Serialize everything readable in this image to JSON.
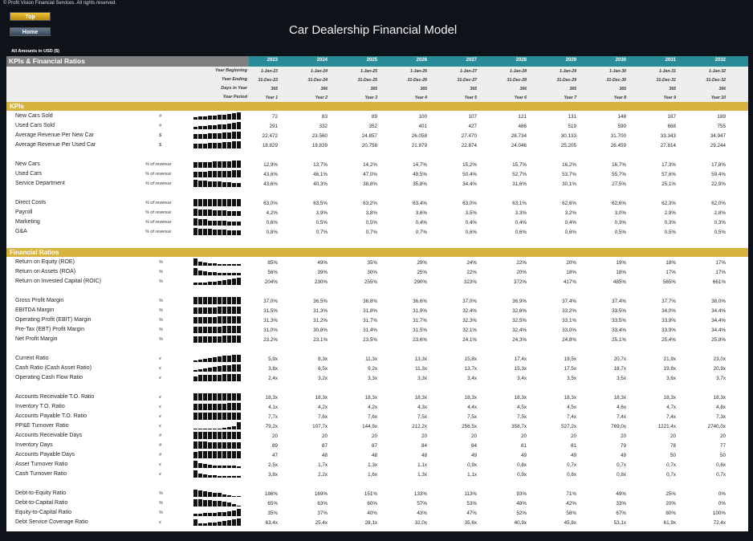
{
  "copyright": "© Profit Vision Financial Services. All rights reserved.",
  "nav": {
    "top": "Top",
    "home": "Home"
  },
  "title": "Car Dealership Financial Model",
  "amounts_note": "All Amounts in  USD ($)",
  "header": {
    "section_title": "KPIs & Financial Ratios",
    "years": [
      "2023",
      "2024",
      "2025",
      "2026",
      "2027",
      "2028",
      "2029",
      "2030",
      "2031",
      "2032"
    ]
  },
  "meta": [
    {
      "label": "Year Beginning",
      "values": [
        "1-Jan-23",
        "1-Jan-24",
        "1-Jan-25",
        "1-Jan-26",
        "1-Jan-27",
        "1-Jan-28",
        "1-Jan-29",
        "1-Jan-30",
        "1-Jan-31",
        "1-Jan-32"
      ]
    },
    {
      "label": "Year Ending",
      "values": [
        "31-Dec-23",
        "31-Dec-24",
        "31-Dec-25",
        "31-Dec-26",
        "31-Dec-27",
        "31-Dec-28",
        "31-Dec-29",
        "31-Dec-30",
        "31-Dec-31",
        "31-Dec-32"
      ]
    },
    {
      "label": "Days in Year",
      "values": [
        "365",
        "366",
        "365",
        "365",
        "365",
        "366",
        "365",
        "365",
        "365",
        "366"
      ]
    },
    {
      "label": "Year Period",
      "values": [
        "Year 1",
        "Year 2",
        "Year 3",
        "Year 4",
        "Year 5",
        "Year 6",
        "Year 7",
        "Year 8",
        "Year 9",
        "Year 10"
      ]
    }
  ],
  "sections": [
    {
      "title": "KPIs",
      "groups": [
        [
          {
            "label": "New Cars Sold",
            "unit": "#",
            "values": [
              "72",
              "83",
              "89",
              "100",
              "107",
              "121",
              "131",
              "148",
              "167",
              "189"
            ]
          },
          {
            "label": "Used Cars Sold",
            "unit": "#",
            "values": [
              "291",
              "332",
              "352",
              "401",
              "427",
              "486",
              "519",
              "590",
              "668",
              "755"
            ]
          },
          {
            "label": "Average Revenue Per New Car",
            "unit": "$",
            "values": [
              "22.472",
              "23.560",
              "24.857",
              "26.058",
              "27.470",
              "28.734",
              "30.133",
              "31.700",
              "33.343",
              "34.947"
            ]
          },
          {
            "label": "Average Revenue Per Used Car",
            "unit": "$",
            "values": [
              "18.829",
              "19.839",
              "20.756",
              "21.879",
              "22.874",
              "24.046",
              "25.205",
              "26.459",
              "27.814",
              "29.244"
            ]
          }
        ],
        [
          {
            "label": "New Cars",
            "unit": "% of revenue",
            "values": [
              "12,9%",
              "13,7%",
              "14,2%",
              "14,7%",
              "15,2%",
              "15,7%",
              "16,2%",
              "16,7%",
              "17,3%",
              "17,8%"
            ]
          },
          {
            "label": "Used Cars",
            "unit": "% of revenue",
            "values": [
              "43,6%",
              "46,1%",
              "47,0%",
              "49,5%",
              "50,4%",
              "52,7%",
              "53,7%",
              "55,7%",
              "57,6%",
              "59,4%"
            ]
          },
          {
            "label": "Service Department",
            "unit": "% of revenue",
            "values": [
              "43,6%",
              "40,3%",
              "38,8%",
              "35,8%",
              "34,4%",
              "31,6%",
              "30,1%",
              "27,5%",
              "25,1%",
              "22,9%"
            ]
          }
        ],
        [
          {
            "label": "Direct Costs",
            "unit": "% of revenue",
            "values": [
              "63,0%",
              "63,5%",
              "63,2%",
              "63,4%",
              "63,0%",
              "63,1%",
              "62,6%",
              "62,6%",
              "62,3%",
              "62,0%"
            ]
          },
          {
            "label": "Payroll",
            "unit": "% of revenue",
            "values": [
              "4,2%",
              "3,9%",
              "3,8%",
              "3,6%",
              "3,5%",
              "3,3%",
              "3,2%",
              "3,0%",
              "2,9%",
              "2,8%"
            ]
          },
          {
            "label": "Marketing",
            "unit": "% of revenue",
            "values": [
              "0,6%",
              "0,5%",
              "0,5%",
              "0,4%",
              "0,4%",
              "0,4%",
              "0,4%",
              "0,3%",
              "0,3%",
              "0,3%"
            ]
          },
          {
            "label": "G&A",
            "unit": "% of revenue",
            "values": [
              "0,8%",
              "0,7%",
              "0,7%",
              "0,7%",
              "0,6%",
              "0,6%",
              "0,6%",
              "0,5%",
              "0,5%",
              "0,5%"
            ]
          }
        ]
      ]
    },
    {
      "title": "Financial Ratios",
      "groups": [
        [
          {
            "label": "Return on Equity (ROE)",
            "unit": "%",
            "values": [
              "85%",
              "49%",
              "35%",
              "29%",
              "24%",
              "22%",
              "20%",
              "19%",
              "18%",
              "17%"
            ]
          },
          {
            "label": "Return on Assets (ROA)",
            "unit": "%",
            "values": [
              "56%",
              "39%",
              "30%",
              "25%",
              "22%",
              "20%",
              "18%",
              "18%",
              "17%",
              "17%"
            ]
          },
          {
            "label": "Return on Invested Capital (ROIC)",
            "unit": "%",
            "values": [
              "204%",
              "230%",
              "255%",
              "290%",
              "323%",
              "372%",
              "417%",
              "485%",
              "565%",
              "661%"
            ]
          }
        ],
        [
          {
            "label": "Gross Profit Margin",
            "unit": "%",
            "values": [
              "37,0%",
              "36,5%",
              "36,8%",
              "36,6%",
              "37,0%",
              "36,9%",
              "37,4%",
              "37,4%",
              "37,7%",
              "38,0%"
            ]
          },
          {
            "label": "EBITDA Margin",
            "unit": "%",
            "values": [
              "31,5%",
              "31,3%",
              "31,8%",
              "31,9%",
              "32,4%",
              "32,6%",
              "33,2%",
              "33,5%",
              "34,0%",
              "34,4%"
            ]
          },
          {
            "label": "Operating Profit (EBIT) Margin",
            "unit": "%",
            "values": [
              "31,3%",
              "31,2%",
              "31,7%",
              "31,7%",
              "32,3%",
              "32,5%",
              "33,1%",
              "33,5%",
              "33,9%",
              "34,4%"
            ]
          },
          {
            "label": "Pre-Tax (EBT) Profit Margin",
            "unit": "%",
            "values": [
              "31,0%",
              "30,8%",
              "31,4%",
              "31,5%",
              "32,1%",
              "32,4%",
              "33,0%",
              "33,4%",
              "33,9%",
              "34,4%"
            ]
          },
          {
            "label": "Net Profit Margin",
            "unit": "%",
            "values": [
              "23,2%",
              "23,1%",
              "23,5%",
              "23,6%",
              "24,1%",
              "24,3%",
              "24,8%",
              "25,1%",
              "25,4%",
              "25,8%"
            ]
          }
        ],
        [
          {
            "label": "Current Ratio",
            "unit": "x",
            "values": [
              "5,9x",
              "8,3x",
              "11,3x",
              "13,3x",
              "15,8x",
              "17,4x",
              "19,5x",
              "20,7x",
              "21,9x",
              "23,0x"
            ]
          },
          {
            "label": "Cash Ratio (Cash Asset Ratio)",
            "unit": "x",
            "values": [
              "3,8x",
              "6,5x",
              "9,2x",
              "11,3x",
              "13,7x",
              "15,3x",
              "17,5x",
              "18,7x",
              "19,8x",
              "20,9x"
            ]
          },
          {
            "label": "Operating Cash Flow Ratio",
            "unit": "x",
            "values": [
              "2,4x",
              "3,2x",
              "3,3x",
              "3,3x",
              "3,4x",
              "3,4x",
              "3,5x",
              "3,5x",
              "3,6x",
              "3,7x"
            ]
          }
        ],
        [
          {
            "label": "Accounts Receivable T.O. Ratio",
            "unit": "x",
            "values": [
              "18,3x",
              "18,3x",
              "18,3x",
              "18,3x",
              "18,3x",
              "18,3x",
              "18,3x",
              "18,3x",
              "18,3x",
              "18,3x"
            ]
          },
          {
            "label": "Inventory T.O. Ratio",
            "unit": "x",
            "values": [
              "4,1x",
              "4,2x",
              "4,2x",
              "4,3x",
              "4,4x",
              "4,5x",
              "4,5x",
              "4,6x",
              "4,7x",
              "4,8x"
            ]
          },
          {
            "label": "Accounts Payable T.O. Ratio",
            "unit": "x",
            "values": [
              "7,7x",
              "7,6x",
              "7,6x",
              "7,5x",
              "7,5x",
              "7,5x",
              "7,4x",
              "7,4x",
              "7,4x",
              "7,3x"
            ]
          },
          {
            "label": "PP&E Turnover Ratio",
            "unit": "x",
            "values": [
              "79,2x",
              "107,7x",
              "144,9x",
              "212,2x",
              "256,5x",
              "358,7x",
              "527,2x",
              "769,0x",
              "1221,4x",
              "2740,0x"
            ]
          },
          {
            "label": "Accounts Receivable Days",
            "unit": "#",
            "values": [
              "20",
              "20",
              "20",
              "20",
              "20",
              "20",
              "20",
              "20",
              "20",
              "20"
            ]
          },
          {
            "label": "Inventory Days",
            "unit": "#",
            "values": [
              "89",
              "87",
              "87",
              "84",
              "84",
              "81",
              "81",
              "79",
              "78",
              "77"
            ]
          },
          {
            "label": "Accounts Payable Days",
            "unit": "#",
            "values": [
              "47",
              "48",
              "48",
              "48",
              "49",
              "49",
              "49",
              "49",
              "50",
              "50"
            ]
          },
          {
            "label": "Asset Turnover Ratio",
            "unit": "x",
            "values": [
              "2,5x",
              "1,7x",
              "1,3x",
              "1,1x",
              "0,9x",
              "0,8x",
              "0,7x",
              "0,7x",
              "0,7x",
              "0,6x"
            ]
          },
          {
            "label": "Cash Turnover Ratio",
            "unit": "x",
            "values": [
              "3,8x",
              "2,2x",
              "1,6x",
              "1,3x",
              "1,1x",
              "0,9x",
              "0,8x",
              "0,8x",
              "0,7x",
              "0,7x"
            ]
          }
        ],
        [
          {
            "label": "Debt-to-Equity Ratio",
            "unit": "%",
            "values": [
              "186%",
              "169%",
              "151%",
              "133%",
              "113%",
              "93%",
              "71%",
              "49%",
              "25%",
              "0%"
            ]
          },
          {
            "label": "Debt-to-Capital Ratio",
            "unit": "%",
            "values": [
              "65%",
              "63%",
              "60%",
              "57%",
              "53%",
              "48%",
              "42%",
              "33%",
              "20%",
              "0%"
            ]
          },
          {
            "label": "Equity-to-Capital Ratio",
            "unit": "%",
            "values": [
              "35%",
              "37%",
              "40%",
              "43%",
              "47%",
              "52%",
              "58%",
              "67%",
              "80%",
              "100%"
            ]
          },
          {
            "label": "Debt Service Coverage Ratio",
            "unit": "x",
            "values": [
              "63,4x",
              "25,4x",
              "28,1x",
              "32,0x",
              "35,6x",
              "40,9x",
              "45,8x",
              "53,1x",
              "61,9x",
              "72,4x"
            ]
          }
        ]
      ]
    }
  ]
}
